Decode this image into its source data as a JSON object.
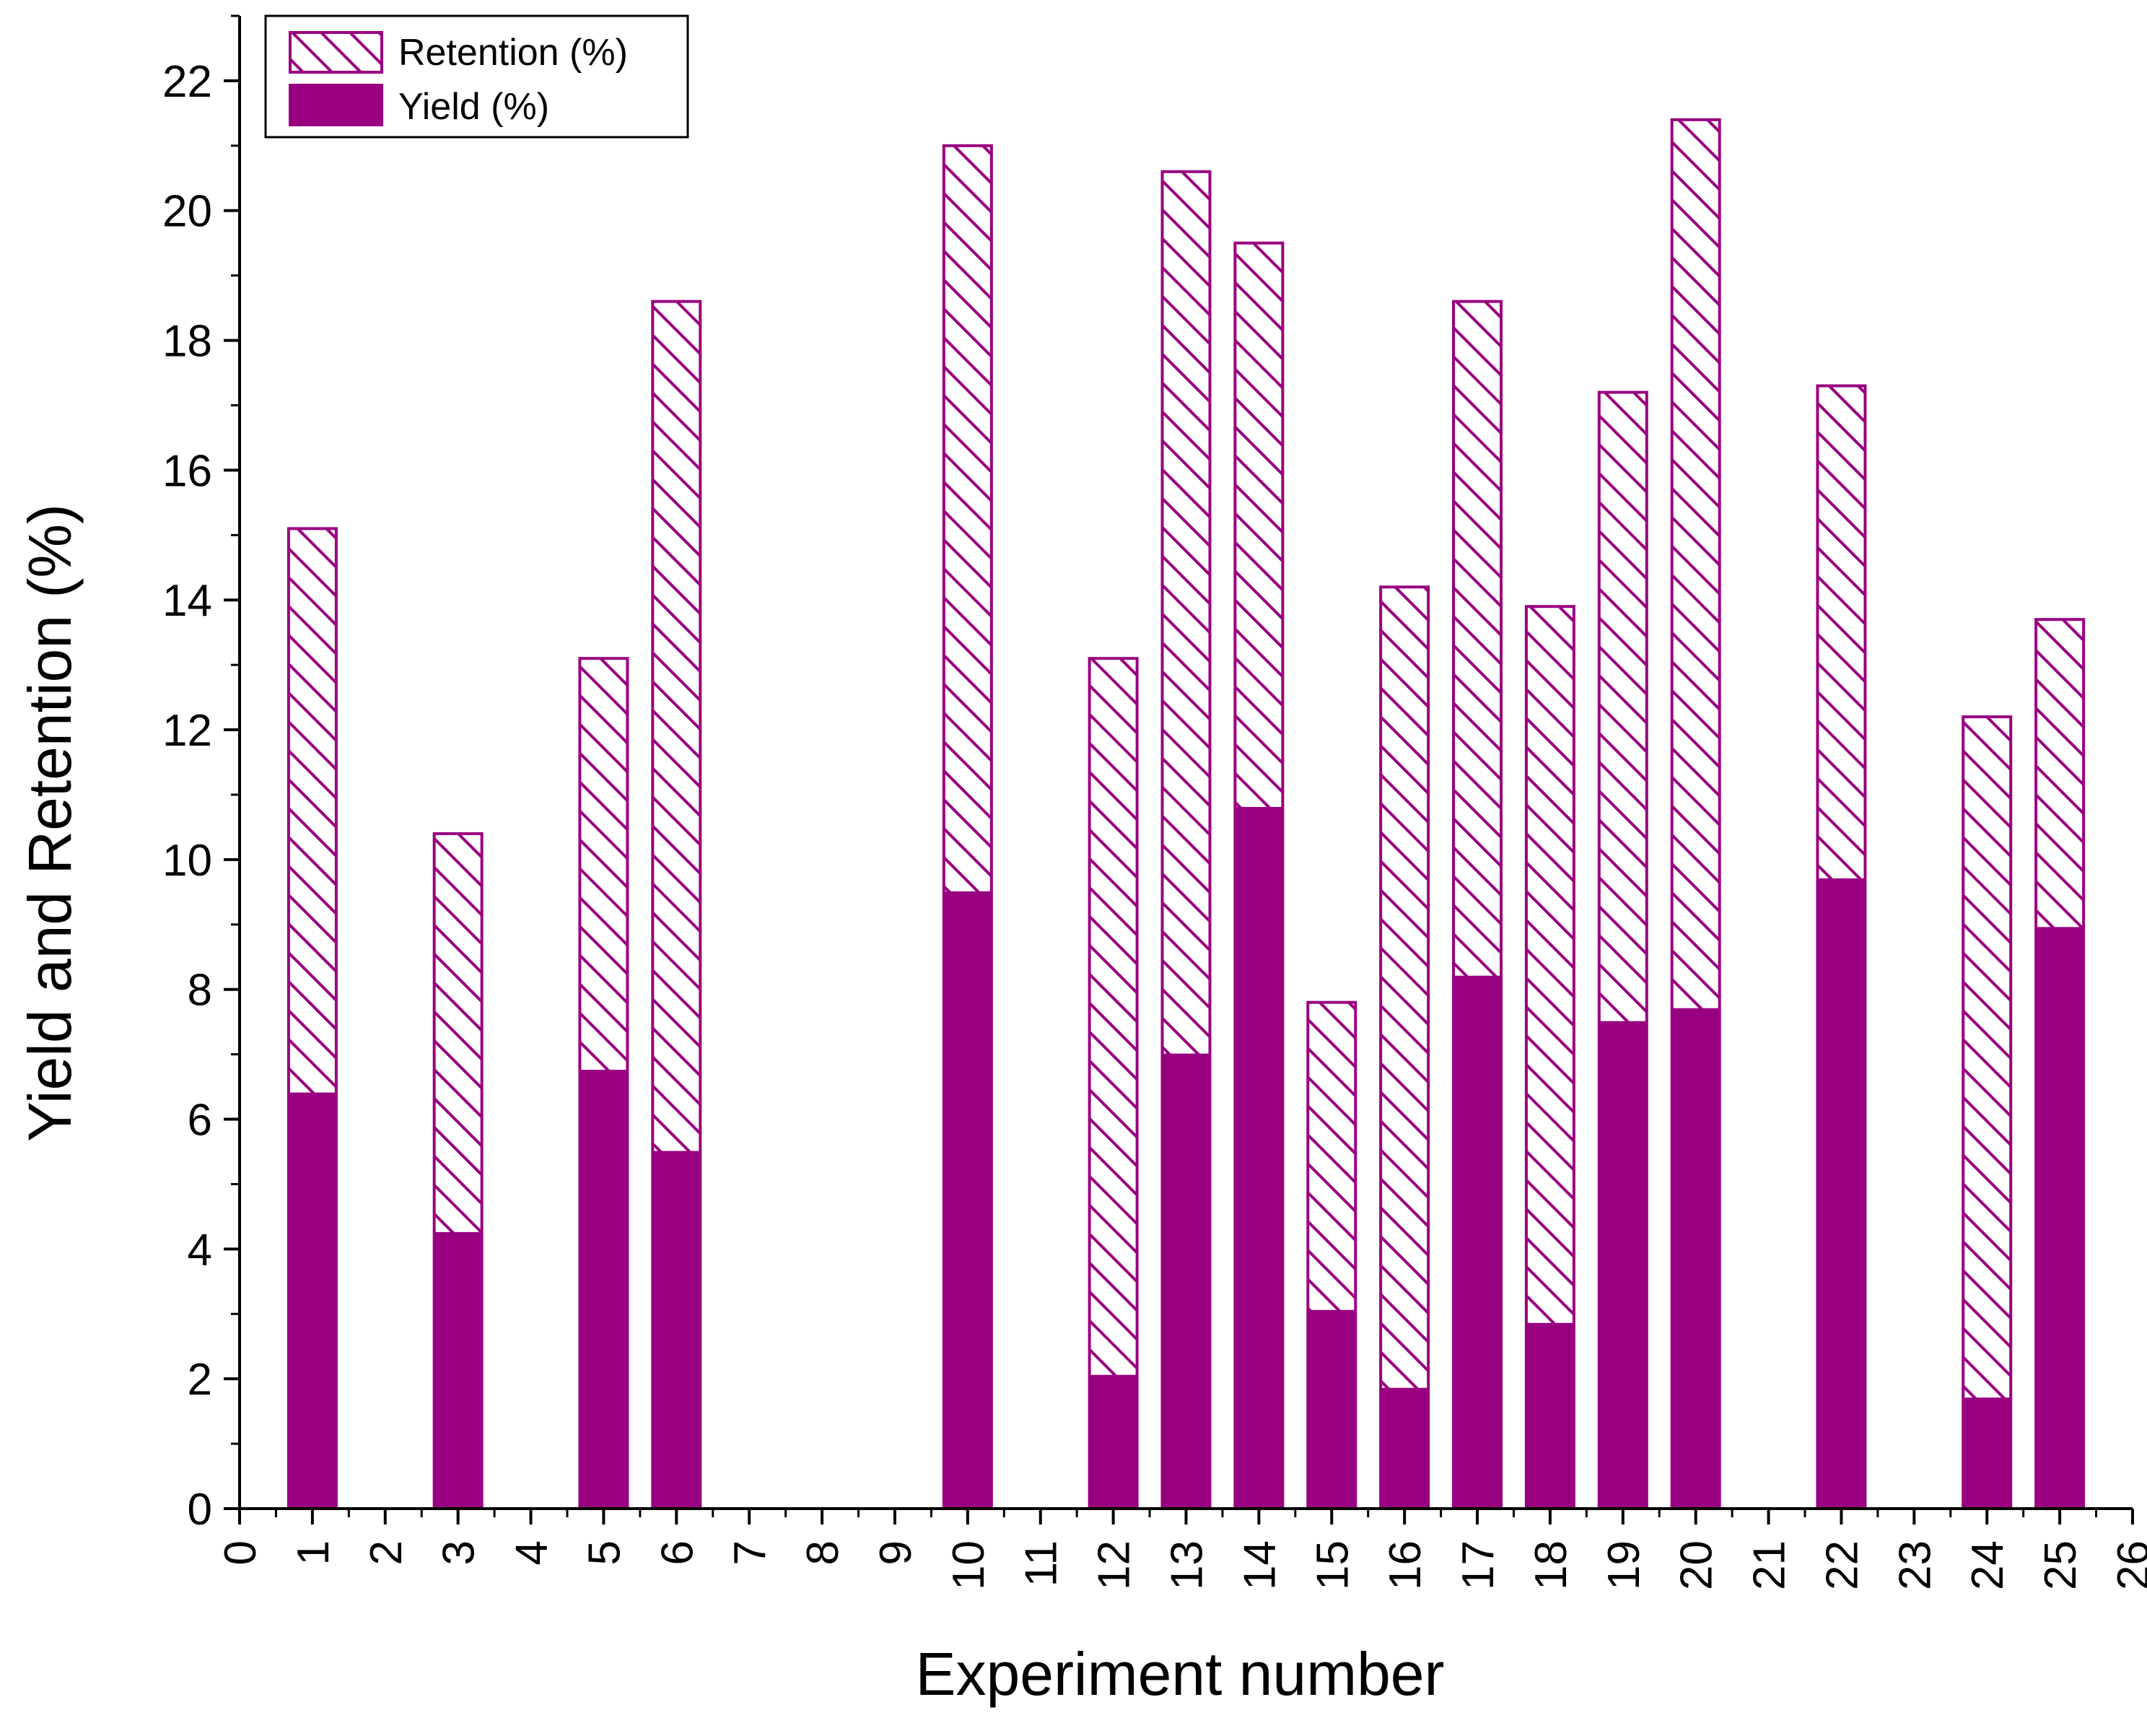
{
  "chart_data": {
    "type": "bar",
    "stacked": "overlay",
    "title": "",
    "xlabel": "Experiment number",
    "ylabel": "Yield and Retention (%)",
    "ylim": [
      0,
      23
    ],
    "yticks": [
      0,
      2,
      4,
      6,
      8,
      10,
      12,
      14,
      16,
      18,
      20,
      22
    ],
    "xlim": [
      0,
      26
    ],
    "xticks": [
      0,
      1,
      2,
      3,
      4,
      5,
      6,
      7,
      8,
      9,
      10,
      11,
      12,
      13,
      14,
      15,
      16,
      17,
      18,
      19,
      20,
      21,
      22,
      23,
      24,
      25,
      26
    ],
    "legend_position": "top-left",
    "colors": {
      "series": "#990080",
      "axis": "#000000"
    },
    "series": [
      {
        "name": "Retention (%)",
        "pattern": "diagonal-hatch",
        "x": [
          1,
          3,
          5,
          6,
          10,
          12,
          13,
          14,
          15,
          16,
          17,
          18,
          19,
          20,
          22,
          24,
          25
        ],
        "values": [
          15.1,
          10.4,
          13.1,
          18.6,
          21.0,
          13.1,
          20.6,
          19.5,
          7.8,
          14.2,
          18.6,
          13.9,
          17.2,
          21.4,
          17.3,
          12.2,
          13.7
        ]
      },
      {
        "name": "Yield (%)",
        "pattern": "solid",
        "x": [
          1,
          3,
          5,
          6,
          10,
          12,
          13,
          14,
          15,
          16,
          17,
          18,
          19,
          20,
          22,
          24,
          25
        ],
        "values": [
          6.4,
          4.25,
          6.75,
          5.5,
          9.5,
          2.05,
          7.0,
          10.8,
          3.05,
          1.85,
          8.2,
          2.85,
          7.5,
          7.7,
          9.7,
          1.7,
          8.95
        ]
      }
    ]
  }
}
